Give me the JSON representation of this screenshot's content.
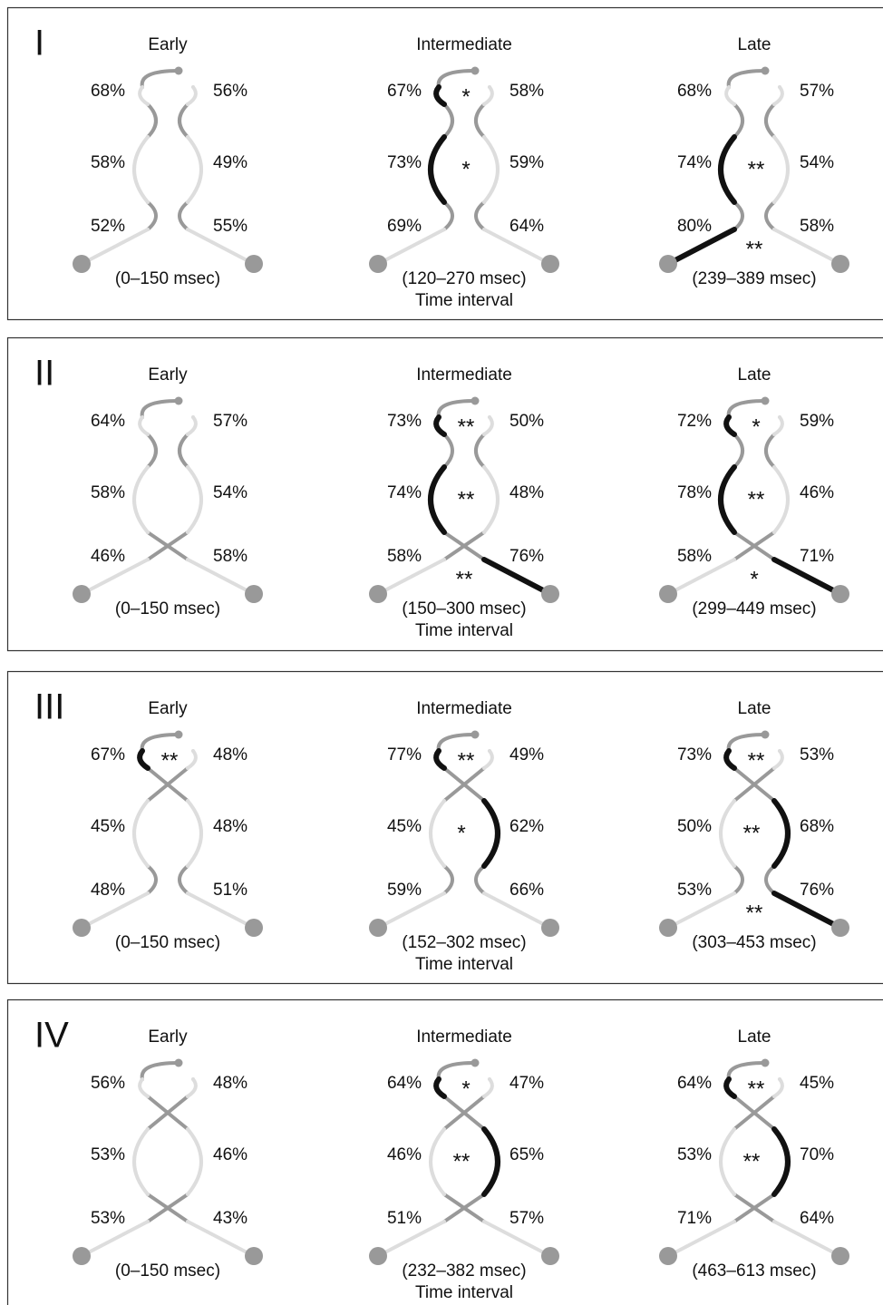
{
  "panels": [
    {
      "label": "I",
      "footer": "Time interval",
      "diagrams": [
        {
          "title": "Early",
          "interval": "(0–150 msec)",
          "rows": [
            {
              "left": "68%",
              "right": "56%"
            },
            {
              "left": "58%",
              "right": "49%"
            },
            {
              "left": "52%",
              "right": "55%"
            }
          ]
        },
        {
          "title": "Intermediate",
          "interval": "(120–270 msec)",
          "rows": [
            {
              "left": "67%",
              "right": "58%",
              "star": "*",
              "highlight": "left"
            },
            {
              "left": "73%",
              "right": "59%",
              "star": "*",
              "highlight": "left"
            },
            {
              "left": "69%",
              "right": "64%"
            }
          ]
        },
        {
          "title": "Late",
          "interval": "(239–389 msec)",
          "rows": [
            {
              "left": "68%",
              "right": "57%"
            },
            {
              "left": "74%",
              "right": "54%",
              "star": "**",
              "highlight": "left"
            },
            {
              "left": "80%",
              "right": "58%",
              "star": "**",
              "highlight": "left"
            }
          ]
        }
      ]
    },
    {
      "label": "II",
      "footer": "Time interval",
      "diagrams": [
        {
          "title": "Early",
          "interval": "(0–150 msec)",
          "rows": [
            {
              "left": "64%",
              "right": "57%"
            },
            {
              "left": "58%",
              "right": "54%"
            },
            {
              "left": "46%",
              "right": "58%"
            }
          ]
        },
        {
          "title": "Intermediate",
          "interval": "(150–300 msec)",
          "rows": [
            {
              "left": "73%",
              "right": "50%",
              "star": "**",
              "highlight": "left"
            },
            {
              "left": "74%",
              "right": "48%",
              "star": "**",
              "highlight": "left"
            },
            {
              "left": "58%",
              "right": "76%",
              "star": "**",
              "highlight": "right"
            }
          ]
        },
        {
          "title": "Late",
          "interval": "(299–449 msec)",
          "rows": [
            {
              "left": "72%",
              "right": "59%",
              "star": "*",
              "highlight": "left"
            },
            {
              "left": "78%",
              "right": "46%",
              "star": "**",
              "highlight": "left"
            },
            {
              "left": "58%",
              "right": "71%",
              "star": "*",
              "highlight": "right"
            }
          ]
        }
      ]
    },
    {
      "label": "III",
      "footer": "Time interval",
      "diagrams": [
        {
          "title": "Early",
          "interval": "(0–150 msec)",
          "rows": [
            {
              "left": "67%",
              "right": "48%",
              "star": "**",
              "highlight": "left"
            },
            {
              "left": "45%",
              "right": "48%"
            },
            {
              "left": "48%",
              "right": "51%"
            }
          ]
        },
        {
          "title": "Intermediate",
          "interval": "(152–302 msec)",
          "rows": [
            {
              "left": "77%",
              "right": "49%",
              "star": "**",
              "highlight": "left"
            },
            {
              "left": "45%",
              "right": "62%",
              "star": "*",
              "highlight": "right"
            },
            {
              "left": "59%",
              "right": "66%"
            }
          ]
        },
        {
          "title": "Late",
          "interval": "(303–453 msec)",
          "rows": [
            {
              "left": "73%",
              "right": "53%",
              "star": "**",
              "highlight": "left"
            },
            {
              "left": "50%",
              "right": "68%",
              "star": "**",
              "highlight": "right"
            },
            {
              "left": "53%",
              "right": "76%",
              "star": "**",
              "highlight": "right"
            }
          ]
        }
      ]
    },
    {
      "label": "IV",
      "footer": "Time interval",
      "diagrams": [
        {
          "title": "Early",
          "interval": "(0–150 msec)",
          "rows": [
            {
              "left": "56%",
              "right": "48%"
            },
            {
              "left": "53%",
              "right": "46%"
            },
            {
              "left": "53%",
              "right": "43%"
            }
          ]
        },
        {
          "title": "Intermediate",
          "interval": "(232–382 msec)",
          "rows": [
            {
              "left": "64%",
              "right": "47%",
              "star": "*",
              "highlight": "left"
            },
            {
              "left": "46%",
              "right": "65%",
              "star": "**",
              "highlight": "right"
            },
            {
              "left": "51%",
              "right": "57%"
            }
          ]
        },
        {
          "title": "Late",
          "interval": "(463–613 msec)",
          "rows": [
            {
              "left": "64%",
              "right": "45%",
              "star": "**",
              "highlight": "left"
            },
            {
              "left": "53%",
              "right": "70%",
              "star": "**",
              "highlight": "right"
            },
            {
              "left": "71%",
              "right": "64%"
            }
          ]
        }
      ]
    }
  ]
}
